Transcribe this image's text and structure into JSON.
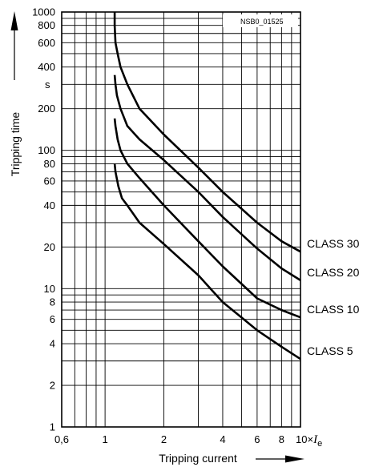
{
  "chart_data": {
    "type": "line",
    "title": "",
    "reference_code": "NSB0_01525",
    "xlabel": "Tripping current",
    "ylabel": "Tripping time",
    "y_unit": "s",
    "x_unit_prefix": "10×",
    "x_unit_symbol": "I",
    "x_unit_subscript": "e",
    "x_scale": "log",
    "y_scale": "log",
    "xlim": [
      0.6,
      10
    ],
    "ylim": [
      1,
      1000
    ],
    "grid": true,
    "x_ticks": [
      {
        "value": 0.6,
        "label": "0,6"
      },
      {
        "value": 1,
        "label": "1"
      },
      {
        "value": 2,
        "label": "2"
      },
      {
        "value": 4,
        "label": "4"
      },
      {
        "value": 6,
        "label": "6"
      },
      {
        "value": 8,
        "label": "8"
      }
    ],
    "y_ticks": [
      {
        "value": 1000,
        "label": "1000"
      },
      {
        "value": 800,
        "label": "800"
      },
      {
        "value": 600,
        "label": "600"
      },
      {
        "value": 400,
        "label": "400"
      },
      {
        "value": 200,
        "label": "200"
      },
      {
        "value": 100,
        "label": "100"
      },
      {
        "value": 80,
        "label": "80"
      },
      {
        "value": 60,
        "label": "60"
      },
      {
        "value": 40,
        "label": "40"
      },
      {
        "value": 20,
        "label": "20"
      },
      {
        "value": 10,
        "label": "10"
      },
      {
        "value": 8,
        "label": "8"
      },
      {
        "value": 6,
        "label": "6"
      },
      {
        "value": 4,
        "label": "4"
      },
      {
        "value": 2,
        "label": "2"
      },
      {
        "value": 1,
        "label": "1"
      }
    ],
    "series": [
      {
        "name": "CLASS 30",
        "points": [
          [
            1.12,
            1000
          ],
          [
            1.12,
            800
          ],
          [
            1.13,
            600
          ],
          [
            1.16,
            500
          ],
          [
            1.2,
            400
          ],
          [
            1.3,
            300
          ],
          [
            1.5,
            200
          ],
          [
            2,
            130
          ],
          [
            3,
            75
          ],
          [
            4,
            50
          ],
          [
            6,
            30
          ],
          [
            8,
            22
          ],
          [
            10,
            18.5
          ]
        ]
      },
      {
        "name": "CLASS 20",
        "points": [
          [
            1.12,
            350
          ],
          [
            1.13,
            300
          ],
          [
            1.15,
            250
          ],
          [
            1.2,
            200
          ],
          [
            1.3,
            150
          ],
          [
            1.5,
            120
          ],
          [
            2,
            85
          ],
          [
            3,
            50
          ],
          [
            4,
            33
          ],
          [
            6,
            19.5
          ],
          [
            8,
            14
          ],
          [
            10,
            11.5
          ]
        ]
      },
      {
        "name": "CLASS 10",
        "points": [
          [
            1.12,
            170
          ],
          [
            1.13,
            150
          ],
          [
            1.16,
            120
          ],
          [
            1.2,
            100
          ],
          [
            1.3,
            80
          ],
          [
            1.5,
            63
          ],
          [
            2,
            40
          ],
          [
            3,
            22
          ],
          [
            4,
            14.5
          ],
          [
            6,
            8.5
          ],
          [
            8,
            7
          ],
          [
            10,
            6.2
          ]
        ]
      },
      {
        "name": "CLASS 5",
        "points": [
          [
            1.12,
            80
          ],
          [
            1.13,
            70
          ],
          [
            1.17,
            55
          ],
          [
            1.22,
            45
          ],
          [
            1.3,
            40
          ],
          [
            1.5,
            30
          ],
          [
            2,
            21
          ],
          [
            3,
            12.5
          ],
          [
            4,
            8
          ],
          [
            6,
            5
          ],
          [
            8,
            3.8
          ],
          [
            10,
            3.1
          ]
        ]
      }
    ]
  }
}
